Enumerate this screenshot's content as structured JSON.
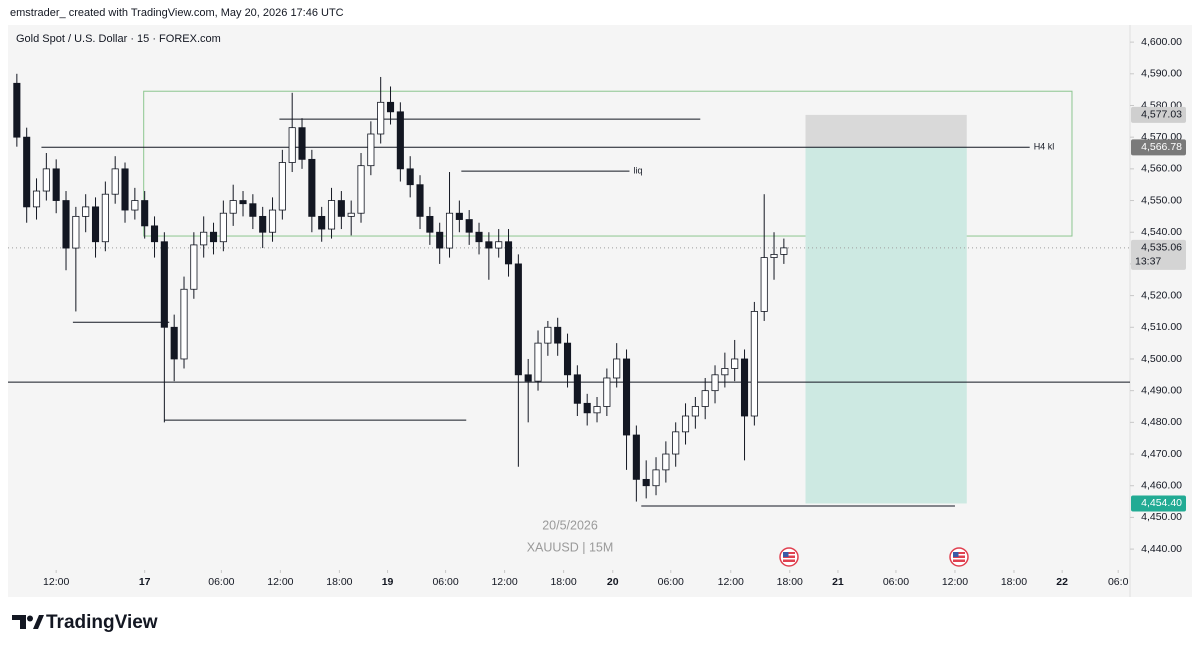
{
  "header": {
    "attribution": "emstrader_ created with TradingView.com, May 20, 2026 17:46 UTC"
  },
  "footer": {
    "brand": "TradingView"
  },
  "chart_data": {
    "type": "candlestick",
    "title": "Gold Spot / U.S. Dollar · 15 · FOREX.com",
    "date_watermark": "20/5/2026",
    "symbol_watermark": "XAUUSD | 15M",
    "up_color": "#ffffff",
    "down_color": "#131722",
    "edge_color": "#131722",
    "x": [
      -13,
      -12,
      -11,
      -10,
      -9,
      -8,
      -7,
      -6,
      -5,
      -4,
      -3,
      -2,
      -1,
      0,
      1,
      2,
      3,
      4,
      5,
      6,
      7,
      8,
      9,
      10,
      11,
      12,
      13,
      14,
      15,
      16,
      17,
      18,
      19,
      20,
      21,
      22,
      23,
      24,
      25,
      26,
      27,
      28,
      29,
      30,
      31,
      32,
      33,
      34,
      35,
      36,
      37,
      38,
      39,
      40,
      41,
      42,
      43,
      44,
      45,
      46,
      47,
      48,
      49,
      50,
      51,
      52,
      53,
      54,
      55,
      56,
      57,
      58,
      59,
      60,
      61,
      62,
      63,
      64,
      65
    ],
    "open": [
      4587,
      4570,
      4548,
      4553,
      4560,
      4550,
      4535,
      4545,
      4548,
      4537,
      4552,
      4560,
      4547,
      4550,
      4542,
      4537,
      4510,
      4500,
      4522,
      4536,
      4540,
      4537,
      4546,
      4550,
      4549,
      4545,
      4540,
      4547,
      4562,
      4573,
      4563,
      4545,
      4541,
      4550,
      4545,
      4546,
      4561,
      4571,
      4581,
      4578,
      4560,
      4555,
      4545,
      4540,
      4535,
      4546,
      4544,
      4540,
      4537,
      4535,
      4537,
      4530,
      4495,
      4493,
      4505,
      4510,
      4505,
      4495,
      4486,
      4483,
      4485,
      4494,
      4500,
      4476,
      4462,
      4460,
      4465,
      4470,
      4477,
      4482,
      4485,
      4490,
      4495,
      4497,
      4500,
      4482,
      4515,
      4532,
      4533
    ],
    "high": [
      4590,
      4573,
      4557,
      4565,
      4563,
      4553,
      4548,
      4552,
      4551,
      4556,
      4564,
      4562,
      4554,
      4553,
      4545,
      4540,
      4514,
      4526,
      4540,
      4545,
      4543,
      4550,
      4555,
      4553,
      4552,
      4548,
      4551,
      4566,
      4584,
      4576,
      4566,
      4548,
      4554,
      4553,
      4550,
      4565,
      4575,
      4589,
      4586,
      4581,
      4564,
      4558,
      4548,
      4543,
      4559,
      4550,
      4547,
      4543,
      4540,
      4541,
      4541,
      4533,
      4500,
      4509,
      4512,
      4513,
      4508,
      4498,
      4489,
      4488,
      4497,
      4505,
      4503,
      4479,
      4468,
      4469,
      4474,
      4480,
      4486,
      4488,
      4494,
      4498,
      4502,
      4506,
      4503,
      4518,
      4552,
      4540,
      4538
    ],
    "low": [
      4567,
      4543,
      4544,
      4550,
      4546,
      4528,
      4515,
      4540,
      4532,
      4534,
      4549,
      4543,
      4544,
      4538,
      4532,
      4480,
      4493,
      4497,
      4519,
      4532,
      4533,
      4534,
      4542,
      4545,
      4541,
      4535,
      4537,
      4544,
      4559,
      4560,
      4540,
      4537,
      4538,
      4541,
      4539,
      4543,
      4558,
      4568,
      4574,
      4556,
      4551,
      4541,
      4536,
      4530,
      4532,
      4540,
      4536,
      4533,
      4525,
      4532,
      4526,
      4466,
      4480,
      4490,
      4501,
      4501,
      4491,
      4482,
      4479,
      4480,
      4482,
      4491,
      4465,
      4455,
      4456,
      4457,
      4461,
      4466,
      4473,
      4478,
      4481,
      4486,
      4491,
      4493,
      4468,
      4479,
      4512,
      4525,
      4530
    ],
    "close": [
      4570,
      4548,
      4553,
      4560,
      4550,
      4535,
      4545,
      4548,
      4537,
      4552,
      4560,
      4547,
      4550,
      4542,
      4537,
      4510,
      4500,
      4522,
      4536,
      4540,
      4537,
      4546,
      4550,
      4549,
      4545,
      4540,
      4547,
      4562,
      4573,
      4563,
      4545,
      4541,
      4550,
      4545,
      4546,
      4561,
      4571,
      4581,
      4578,
      4560,
      4555,
      4545,
      4540,
      4535,
      4546,
      4544,
      4540,
      4537,
      4535,
      4537,
      4530,
      4495,
      4493,
      4505,
      4510,
      4505,
      4495,
      4486,
      4483,
      4485,
      4494,
      4500,
      4476,
      4462,
      4460,
      4465,
      4470,
      4477,
      4482,
      4485,
      4490,
      4495,
      4497,
      4500,
      4482,
      4515,
      4532,
      4533,
      4535.06
    ],
    "xlim": [
      -13.9,
      100.2
    ],
    "ylim": [
      4433.4,
      4605.4
    ],
    "xticks": [
      {
        "value": -9,
        "label": "12:00"
      },
      {
        "value": 0,
        "label": "17"
      },
      {
        "value": 7.8,
        "label": "06:00"
      },
      {
        "value": 13.8,
        "label": "12:00"
      },
      {
        "value": 19.8,
        "label": "18:00"
      },
      {
        "value": 24.7,
        "label": "19"
      },
      {
        "value": 30.6,
        "label": "06:00"
      },
      {
        "value": 36.6,
        "label": "12:00"
      },
      {
        "value": 42.6,
        "label": "18:00"
      },
      {
        "value": 47.6,
        "label": "20"
      },
      {
        "value": 53.5,
        "label": "06:00"
      },
      {
        "value": 59.6,
        "label": "12:00"
      },
      {
        "value": 65.6,
        "label": "18:00"
      },
      {
        "value": 70.5,
        "label": "21"
      },
      {
        "value": 76.4,
        "label": "06:00"
      },
      {
        "value": 82.4,
        "label": "12:00"
      },
      {
        "value": 88.4,
        "label": "18:00"
      },
      {
        "value": 93.3,
        "label": "22"
      },
      {
        "value": 99,
        "label": "06:0"
      }
    ],
    "yticks": [
      {
        "value": 4440,
        "label": "4,440.00"
      },
      {
        "value": 4450,
        "label": "4,450.00"
      },
      {
        "value": 4460,
        "label": "4,460.00"
      },
      {
        "value": 4470,
        "label": "4,470.00"
      },
      {
        "value": 4480,
        "label": "4,480.00"
      },
      {
        "value": 4490,
        "label": "4,490.00"
      },
      {
        "value": 4500,
        "label": "4,500.00"
      },
      {
        "value": 4510,
        "label": "4,510.00"
      },
      {
        "value": 4520,
        "label": "4,520.00"
      },
      {
        "value": 4530,
        "label": "4,530.00"
      },
      {
        "value": 4540,
        "label": "4,540.00"
      },
      {
        "value": 4550,
        "label": "4,550.00"
      },
      {
        "value": 4560,
        "label": "4,560.00"
      },
      {
        "value": 4570,
        "label": "4,570.00"
      },
      {
        "value": 4580,
        "label": "4,580.00"
      },
      {
        "value": 4590,
        "label": "4,590.00"
      },
      {
        "value": 4600,
        "label": "4,600.00"
      }
    ],
    "last_price": {
      "value": 4535.06,
      "label": "4,535.06"
    },
    "countdown": "13:37",
    "hlines": [
      {
        "price": 4566.8,
        "x0": -10.5,
        "x1": 90,
        "label": "H4 kl"
      },
      {
        "price": 4575.7,
        "x0": 13.7,
        "x1": 56.5
      },
      {
        "price": 4559.3,
        "x0": 32.2,
        "x1": 49.3,
        "label": "liq"
      },
      {
        "price": 4511.6,
        "x0": -7.3,
        "x1": 2.5
      },
      {
        "price": 4480.7,
        "x0": 2,
        "x1": 32.7
      },
      {
        "price": 4453.6,
        "x0": 50.5,
        "x1": 82.4
      },
      {
        "price": 4492.7
      }
    ],
    "zone": {
      "x0": -0.1,
      "x1": 94.3,
      "top": 4584.5,
      "bottom": 4538.8,
      "color": "#8cc68f"
    },
    "position": {
      "x0": 67.2,
      "x1": 83.6,
      "stop": {
        "value": 4577.03,
        "label": "4,577.03"
      },
      "entry": {
        "value": 4566.78,
        "label": "4,566.78"
      },
      "target": {
        "value": 4454.4,
        "label": "4,454.40"
      },
      "stop_color": "#d9d9d9",
      "target_color": "#cde9e2"
    }
  }
}
